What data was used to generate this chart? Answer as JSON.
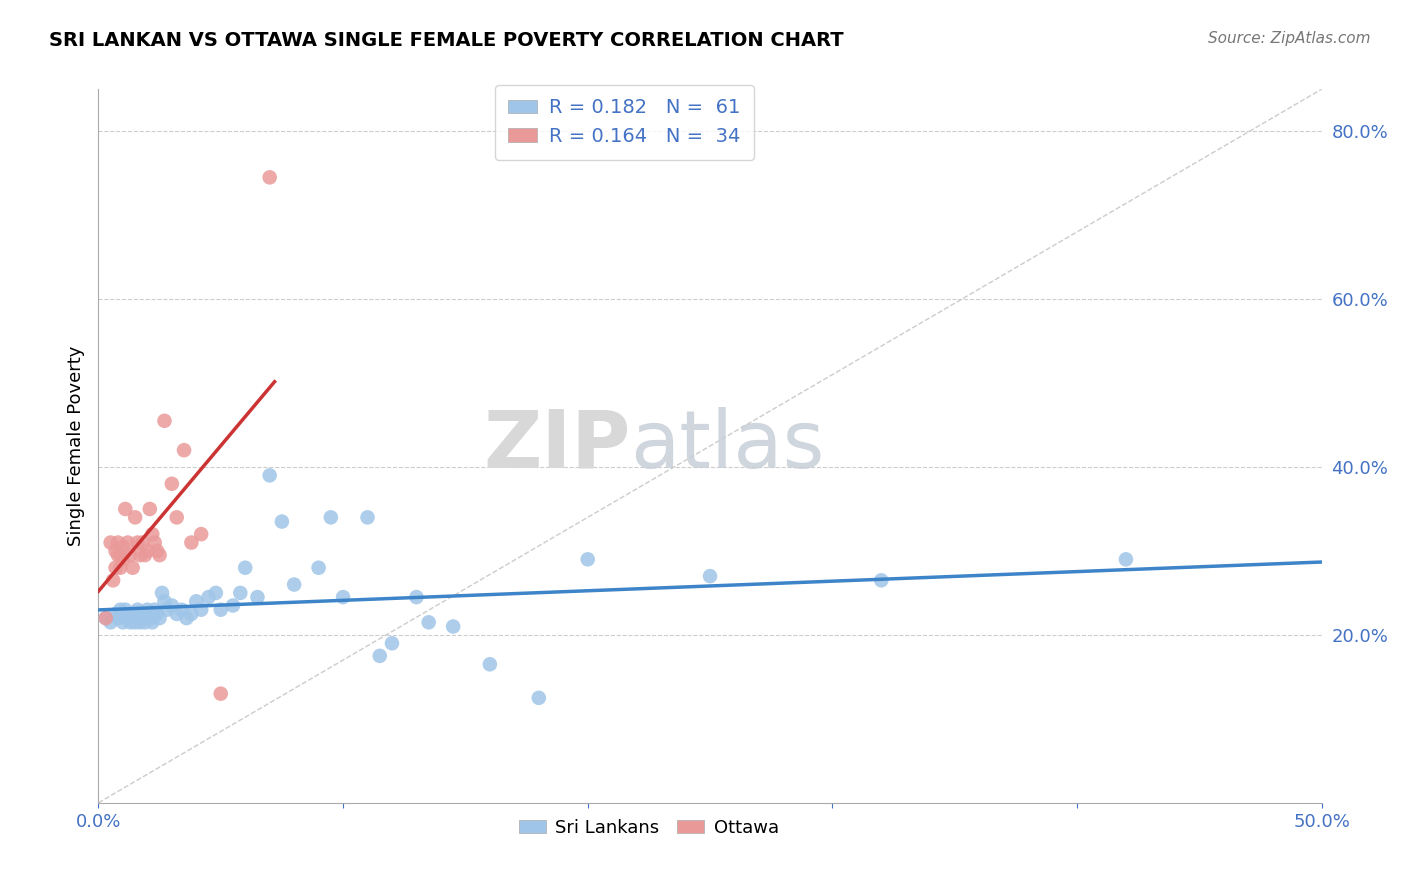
{
  "title": "SRI LANKAN VS OTTAWA SINGLE FEMALE POVERTY CORRELATION CHART",
  "source": "Source: ZipAtlas.com",
  "ylabel": "Single Female Poverty",
  "xlim": [
    0.0,
    0.5
  ],
  "ylim": [
    0.0,
    0.85
  ],
  "xticks": [
    0.0,
    0.1,
    0.2,
    0.3,
    0.4,
    0.5
  ],
  "yticks": [
    0.0,
    0.2,
    0.4,
    0.6,
    0.8
  ],
  "legend_r1": "R = 0.182",
  "legend_n1": "N =  61",
  "legend_r2": "R = 0.164",
  "legend_n2": "N =  34",
  "color_blue": "#9fc5e8",
  "color_pink": "#ea9999",
  "color_blue_line": "#3d85c8",
  "color_pink_line": "#cc3333",
  "sri_lankans_x": [
    0.003,
    0.005,
    0.007,
    0.008,
    0.009,
    0.01,
    0.01,
    0.011,
    0.012,
    0.013,
    0.014,
    0.015,
    0.015,
    0.016,
    0.016,
    0.017,
    0.018,
    0.018,
    0.019,
    0.02,
    0.021,
    0.022,
    0.022,
    0.023,
    0.024,
    0.025,
    0.026,
    0.027,
    0.028,
    0.03,
    0.032,
    0.034,
    0.036,
    0.038,
    0.04,
    0.042,
    0.045,
    0.048,
    0.05,
    0.055,
    0.058,
    0.06,
    0.065,
    0.07,
    0.075,
    0.08,
    0.09,
    0.095,
    0.1,
    0.11,
    0.115,
    0.12,
    0.13,
    0.135,
    0.145,
    0.16,
    0.18,
    0.2,
    0.25,
    0.32,
    0.42
  ],
  "sri_lankans_y": [
    0.22,
    0.215,
    0.225,
    0.22,
    0.23,
    0.225,
    0.215,
    0.23,
    0.22,
    0.215,
    0.225,
    0.22,
    0.215,
    0.225,
    0.23,
    0.215,
    0.22,
    0.225,
    0.215,
    0.23,
    0.225,
    0.22,
    0.215,
    0.23,
    0.225,
    0.22,
    0.25,
    0.24,
    0.23,
    0.235,
    0.225,
    0.23,
    0.22,
    0.225,
    0.24,
    0.23,
    0.245,
    0.25,
    0.23,
    0.235,
    0.25,
    0.28,
    0.245,
    0.39,
    0.335,
    0.26,
    0.28,
    0.34,
    0.245,
    0.34,
    0.175,
    0.19,
    0.245,
    0.215,
    0.21,
    0.165,
    0.125,
    0.29,
    0.27,
    0.265,
    0.29
  ],
  "ottawa_x": [
    0.003,
    0.005,
    0.006,
    0.007,
    0.007,
    0.008,
    0.008,
    0.009,
    0.009,
    0.01,
    0.01,
    0.011,
    0.012,
    0.013,
    0.014,
    0.015,
    0.016,
    0.017,
    0.018,
    0.019,
    0.02,
    0.021,
    0.022,
    0.023,
    0.024,
    0.025,
    0.027,
    0.03,
    0.032,
    0.035,
    0.038,
    0.042,
    0.05,
    0.07
  ],
  "ottawa_y": [
    0.22,
    0.31,
    0.265,
    0.28,
    0.3,
    0.31,
    0.295,
    0.28,
    0.295,
    0.29,
    0.305,
    0.35,
    0.31,
    0.295,
    0.28,
    0.34,
    0.31,
    0.295,
    0.31,
    0.295,
    0.3,
    0.35,
    0.32,
    0.31,
    0.3,
    0.295,
    0.455,
    0.38,
    0.34,
    0.42,
    0.31,
    0.32,
    0.13,
    0.745
  ]
}
